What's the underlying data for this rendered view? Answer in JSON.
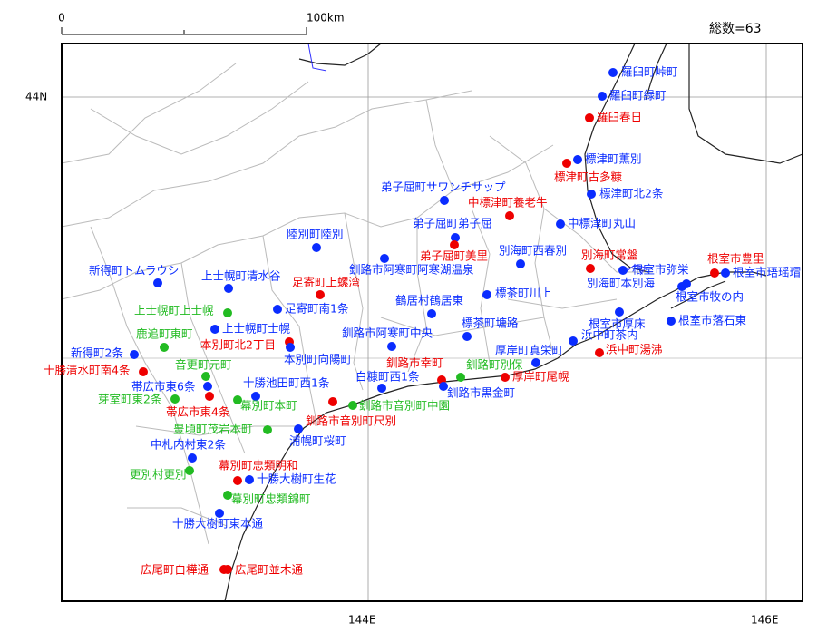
{
  "header": {
    "total": "総数=63"
  },
  "scale": {
    "start": "0",
    "end": "100km"
  },
  "axes": {
    "lat_labels": [
      "44N"
    ],
    "lon_labels": [
      "144E",
      "146E"
    ]
  },
  "points": [
    {
      "label": "羅臼町峠町",
      "color": "#0a2cff"
    },
    {
      "label": "羅臼町緑町",
      "color": "#0a2cff"
    },
    {
      "label": "羅臼春日",
      "color": "#ee0000"
    },
    {
      "label": "標津町薫別",
      "color": "#0a2cff"
    },
    {
      "label": "標津町古多糠",
      "color": "#ee0000"
    },
    {
      "label": "標津町北2条",
      "color": "#0a2cff"
    },
    {
      "label": "中標津町養老牛",
      "color": "#ee0000"
    },
    {
      "label": "中標津町丸山",
      "color": "#0a2cff"
    },
    {
      "label": "弟子屈町サワンチサップ",
      "color": "#0a2cff"
    },
    {
      "label": "弟子屈町弟子屈",
      "color": "#0a2cff"
    },
    {
      "label": "弟子屈町美里",
      "color": "#ee0000"
    },
    {
      "label": "別海町西春別",
      "color": "#0a2cff"
    },
    {
      "label": "別海町常盤",
      "color": "#ee0000"
    },
    {
      "label": "根室市弥栄",
      "color": "#0a2cff"
    },
    {
      "label": "根室市豊里",
      "color": "#ee0000"
    },
    {
      "label": "根室市珸瑶瑁",
      "color": "#0a2cff"
    },
    {
      "label": "別海町本別海",
      "color": "#0a2cff"
    },
    {
      "label": "根室市牧の内",
      "color": "#0a2cff"
    },
    {
      "label": "根室市厚床",
      "color": "#0a2cff"
    },
    {
      "label": "根室市落石東",
      "color": "#0a2cff"
    },
    {
      "label": "浜中町茶内",
      "color": "#0a2cff"
    },
    {
      "label": "浜中町湯沸",
      "color": "#ee0000"
    },
    {
      "label": "厚岸町真栄町",
      "color": "#0a2cff"
    },
    {
      "label": "厚岸町尾幌",
      "color": "#ee0000"
    },
    {
      "label": "釧路町別保",
      "color": "#22bb22"
    },
    {
      "label": "標茶町塘路",
      "color": "#0a2cff"
    },
    {
      "label": "標茶町川上",
      "color": "#0a2cff"
    },
    {
      "label": "鶴居村鶴居東",
      "color": "#0a2cff"
    },
    {
      "label": "釧路市阿寒町阿寒湖温泉",
      "color": "#0a2cff"
    },
    {
      "label": "釧路市阿寒町中央",
      "color": "#0a2cff"
    },
    {
      "label": "釧路市幸町",
      "color": "#ee0000"
    },
    {
      "label": "釧路市黒金町",
      "color": "#0a2cff"
    },
    {
      "label": "白糠町西1条",
      "color": "#0a2cff"
    },
    {
      "label": "釧路市音別町中園",
      "color": "#22bb22"
    },
    {
      "label": "釧路市音別町尺別",
      "color": "#ee0000"
    },
    {
      "label": "陸別町陸別",
      "color": "#0a2cff"
    },
    {
      "label": "足寄町上螺湾",
      "color": "#ee0000"
    },
    {
      "label": "足寄町南1条",
      "color": "#0a2cff"
    },
    {
      "label": "上士幌町清水谷",
      "color": "#0a2cff"
    },
    {
      "label": "新得町トムラウシ",
      "color": "#0a2cff"
    },
    {
      "label": "上士幌町上士幌",
      "color": "#22bb22"
    },
    {
      "label": "上士幌町士幌",
      "color": "#0a2cff"
    },
    {
      "label": "本別町北2丁目",
      "color": "#ee0000"
    },
    {
      "label": "本別町向陽町",
      "color": "#0a2cff"
    },
    {
      "label": "鹿追町東町",
      "color": "#22bb22"
    },
    {
      "label": "新得町2条",
      "color": "#0a2cff"
    },
    {
      "label": "十勝清水町南4条",
      "color": "#ee0000"
    },
    {
      "label": "音更町元町",
      "color": "#22bb22"
    },
    {
      "label": "帯広市東6条",
      "color": "#0a2cff"
    },
    {
      "label": "芽室町東2条",
      "color": "#22bb22"
    },
    {
      "label": "帯広市東4条",
      "color": "#ee0000"
    },
    {
      "label": "十勝池田町西1条",
      "color": "#0a2cff"
    },
    {
      "label": "幕別町本町",
      "color": "#22bb22"
    },
    {
      "label": "浦幌町桜町",
      "color": "#0a2cff"
    },
    {
      "label": "豊頃町茂岩本町",
      "color": "#22bb22"
    },
    {
      "label": "中札内村東2条",
      "color": "#0a2cff"
    },
    {
      "label": "更別村更別",
      "color": "#22bb22"
    },
    {
      "label": "幕別町忠類明和",
      "color": "#ee0000"
    },
    {
      "label": "十勝大樹町生花",
      "color": "#0a2cff"
    },
    {
      "label": "幕別町忠類錦町",
      "color": "#22bb22"
    },
    {
      "label": "十勝大樹町東本通",
      "color": "#0a2cff"
    },
    {
      "label": "広尾町白樺通",
      "color": "#ee0000"
    },
    {
      "label": "広尾町並木通",
      "color": "#ee0000"
    }
  ]
}
